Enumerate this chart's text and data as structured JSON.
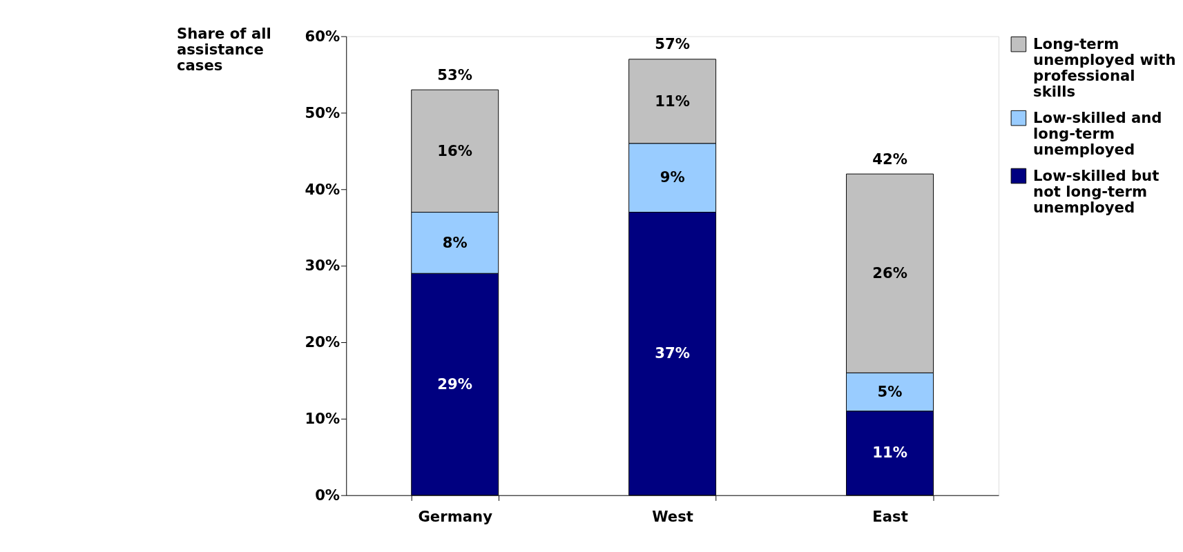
{
  "chart_data": {
    "type": "bar",
    "stacked": true,
    "ylabel": "Share of all assistance cases",
    "categories": [
      "Germany",
      "West",
      "East"
    ],
    "series": [
      {
        "name": "Low-skilled but not long-term unemployed",
        "color": "#000080",
        "values": [
          29,
          37,
          11
        ],
        "value_labels": [
          "29%",
          "37%",
          "11%"
        ]
      },
      {
        "name": "Low-skilled and long-term unemployed",
        "color": "#99ccff",
        "values": [
          8,
          9,
          5
        ],
        "value_labels": [
          "8%",
          "9%",
          "5%"
        ]
      },
      {
        "name": "Long-term unemployed with professional skills",
        "color": "#c0c0c0",
        "values": [
          16,
          11,
          26
        ],
        "value_labels": [
          "16%",
          "11%",
          "26%"
        ]
      }
    ],
    "totals": [
      "53%",
      "57%",
      "42%"
    ],
    "ylim": [
      0,
      60
    ],
    "yticks": [
      {
        "value": 0,
        "label": "0%"
      },
      {
        "value": 10,
        "label": "10%"
      },
      {
        "value": 20,
        "label": "20%"
      },
      {
        "value": 30,
        "label": "30%"
      },
      {
        "value": 40,
        "label": "40%"
      },
      {
        "value": 50,
        "label": "50%"
      },
      {
        "value": 60,
        "label": "60%"
      }
    ],
    "grid": false,
    "legend": "right"
  }
}
